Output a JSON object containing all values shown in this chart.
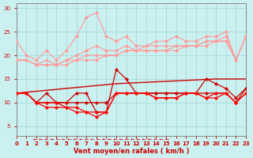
{
  "x": [
    0,
    1,
    2,
    3,
    4,
    5,
    6,
    7,
    8,
    9,
    10,
    11,
    12,
    13,
    14,
    15,
    16,
    17,
    18,
    19,
    20,
    21,
    22,
    23
  ],
  "series": [
    {
      "name": "rafales_top",
      "color": "#FF9999",
      "lw": 0.8,
      "ms": 2.5,
      "values": [
        23,
        20,
        19,
        21,
        19,
        21,
        24,
        28,
        29,
        24,
        23,
        24,
        22,
        22,
        23,
        23,
        24,
        23,
        23,
        24,
        24,
        25,
        19,
        24
      ]
    },
    {
      "name": "rafales_2",
      "color": "#FF9999",
      "lw": 0.8,
      "ms": 2.5,
      "values": [
        19,
        19,
        18,
        19,
        18,
        19,
        20,
        21,
        22,
        21,
        21,
        22,
        21,
        22,
        22,
        22,
        22,
        22,
        22,
        23,
        23,
        24,
        19,
        24
      ]
    },
    {
      "name": "rafales_3",
      "color": "#FF9999",
      "lw": 0.8,
      "ms": 2.5,
      "values": [
        19,
        19,
        18,
        18,
        18,
        19,
        19,
        20,
        20,
        20,
        20,
        21,
        21,
        21,
        21,
        21,
        22,
        22,
        22,
        23,
        23,
        23,
        19,
        24
      ]
    },
    {
      "name": "rafales_4",
      "color": "#FF9999",
      "lw": 0.8,
      "ms": 2.5,
      "values": [
        19,
        19,
        18,
        18,
        18,
        18,
        19,
        19,
        19,
        20,
        20,
        21,
        21,
        21,
        21,
        21,
        21,
        22,
        22,
        22,
        23,
        23,
        19,
        24
      ]
    },
    {
      "name": "vent_trend",
      "color": "#CC0000",
      "lw": 1.0,
      "ms": 0,
      "values": [
        12,
        12.2,
        12.4,
        12.6,
        12.8,
        13.0,
        13.2,
        13.4,
        13.6,
        13.8,
        14.0,
        14.1,
        14.2,
        14.3,
        14.4,
        14.5,
        14.6,
        14.7,
        14.8,
        14.9,
        15.0,
        15.0,
        15.0,
        15.0
      ]
    },
    {
      "name": "vent_high",
      "color": "#CC0000",
      "lw": 0.9,
      "ms": 2.5,
      "values": [
        12,
        12,
        10,
        12,
        10,
        10,
        12,
        12,
        8,
        8,
        17,
        15,
        12,
        12,
        12,
        12,
        12,
        12,
        12,
        15,
        14,
        13,
        11,
        13
      ]
    },
    {
      "name": "vent_flat1",
      "color": "#CC0000",
      "lw": 0.9,
      "ms": 2.5,
      "values": [
        12,
        12,
        10,
        10,
        10,
        10,
        10,
        10,
        10,
        10,
        12,
        12,
        12,
        12,
        12,
        12,
        12,
        12,
        12,
        12,
        12,
        12,
        10,
        13
      ]
    },
    {
      "name": "vent_low",
      "color": "#FF0000",
      "lw": 0.9,
      "ms": 2.5,
      "values": [
        12,
        12,
        10,
        9,
        9,
        9,
        8,
        8,
        8,
        8,
        12,
        12,
        12,
        12,
        11,
        11,
        11,
        12,
        12,
        11,
        12,
        12,
        10,
        12
      ]
    },
    {
      "name": "vent_vlow",
      "color": "#FF0000",
      "lw": 0.9,
      "ms": 2.5,
      "values": [
        12,
        12,
        10,
        10,
        10,
        9,
        9,
        8,
        7,
        8,
        12,
        12,
        12,
        12,
        11,
        11,
        11,
        12,
        12,
        11,
        11,
        12,
        10,
        12
      ]
    }
  ],
  "xlim": [
    0,
    23
  ],
  "ylim": [
    3,
    31
  ],
  "yticks": [
    5,
    10,
    15,
    20,
    25,
    30
  ],
  "xticks": [
    0,
    1,
    2,
    3,
    4,
    5,
    6,
    7,
    8,
    9,
    10,
    11,
    12,
    13,
    14,
    15,
    16,
    17,
    18,
    19,
    20,
    21,
    22,
    23
  ],
  "xlabel": "Vent moyen/en rafales ( km/h )",
  "bg_color": "#CBF0F0",
  "grid_color": "#AADDDD",
  "tick_color": "#CC0000",
  "label_color": "#CC0000",
  "arrow_color": "#CC0000",
  "spine_color": "#888888"
}
